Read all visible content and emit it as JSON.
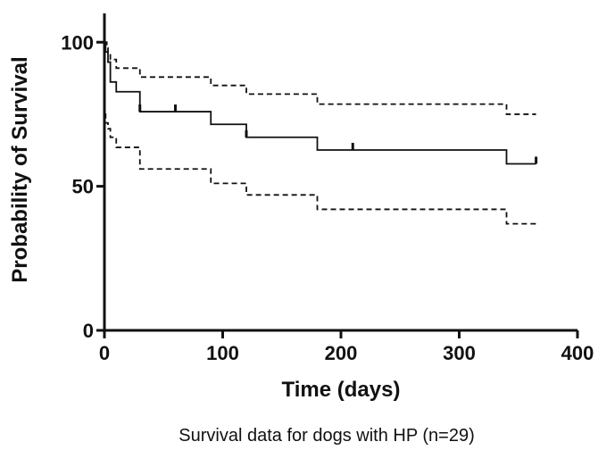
{
  "chart_data": {
    "type": "line",
    "step": true,
    "x_label": "Time (days)",
    "y_label": "Probability of Survival",
    "caption": "Survival data for dogs with HP (n=29)",
    "xlim": [
      0,
      400
    ],
    "ylim": [
      0,
      110
    ],
    "xticks": [
      0,
      100,
      200,
      300,
      400
    ],
    "yticks": [
      0,
      50,
      100
    ],
    "series": [
      {
        "color": "#111111",
        "dash": false,
        "x": [
          0,
          1,
          3,
          5,
          10,
          30,
          90,
          120,
          180,
          340,
          365
        ],
        "values": [
          100,
          96.6,
          93.1,
          86.2,
          82.8,
          75.9,
          71.5,
          67.0,
          62.6,
          57.8,
          57.8
        ]
      },
      {
        "color": "#111111",
        "dash": true,
        "x": [
          0,
          2,
          3,
          5,
          10,
          30,
          90,
          120,
          180,
          340,
          365
        ],
        "values": [
          100,
          98,
          96,
          94,
          91,
          87.9,
          85,
          82,
          78.5,
          75,
          75
        ]
      },
      {
        "color": "#111111",
        "dash": true,
        "x": [
          0,
          1,
          3,
          5,
          10,
          30,
          90,
          120,
          180,
          340,
          365
        ],
        "values": [
          75,
          72,
          70,
          67,
          63.5,
          56,
          51,
          47,
          42,
          37,
          37
        ]
      }
    ],
    "censored": {
      "x": [
        30,
        60,
        120,
        210,
        365
      ],
      "values": [
        75.9,
        75.9,
        67.0,
        62.6,
        57.8
      ]
    }
  }
}
